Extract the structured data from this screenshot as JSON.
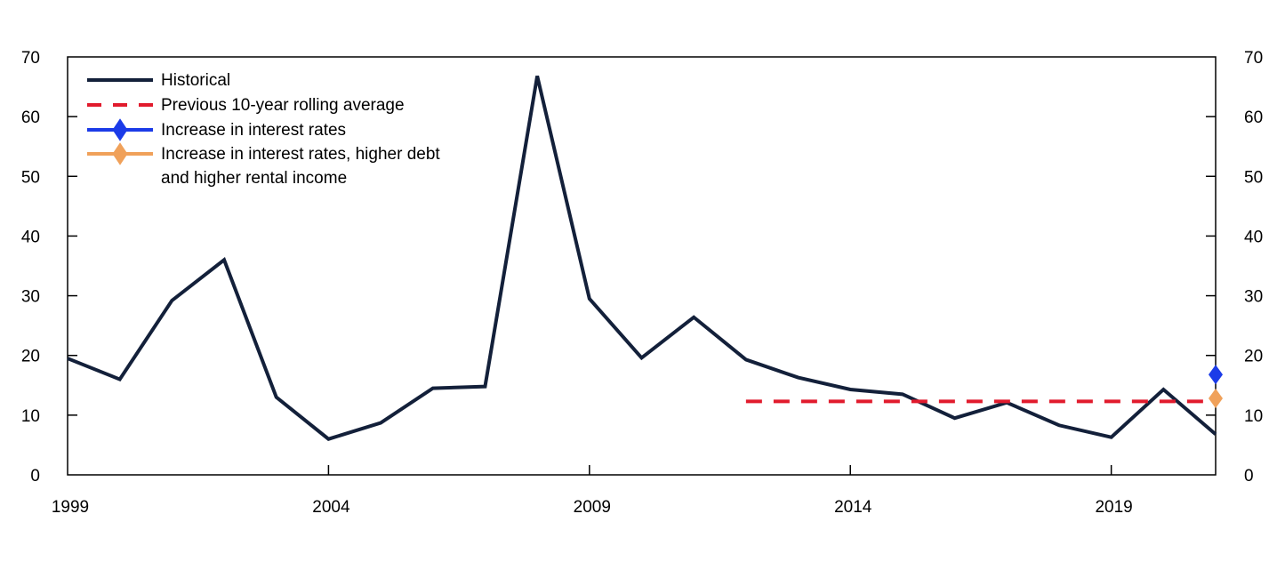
{
  "chart_data": {
    "type": "line",
    "title": "",
    "xlabel": "",
    "ylabel": "",
    "x": [
      1999,
      2000,
      2001,
      2002,
      2003,
      2004,
      2005,
      2006,
      2007,
      2008,
      2009,
      2010,
      2011,
      2012,
      2013,
      2014,
      2015,
      2016,
      2017,
      2018,
      2019,
      2020,
      2021
    ],
    "series": [
      {
        "name": "Historical",
        "kind": "line",
        "color": "#13203A",
        "line_width": 4,
        "values": [
          19.5,
          16,
          29.2,
          36,
          13,
          6,
          8.7,
          14.5,
          14.8,
          66.8,
          29.5,
          19.6,
          26.4,
          19.3,
          16.3,
          14.3,
          13.5,
          9.5,
          12.1,
          8.3,
          6.3,
          14.3,
          6.8
        ]
      },
      {
        "name": "Previous 10-year rolling average",
        "kind": "dashed-horizontal-line",
        "color": "#E11B2D",
        "line_width": 4,
        "x_start": 2012,
        "x_end": 2021,
        "value": 12.3
      },
      {
        "name": "Increase in interest rates",
        "kind": "marker",
        "marker": "diamond",
        "color": "#1B3BE8",
        "point": {
          "x": 2021,
          "y": 16.8
        }
      },
      {
        "name": "Increase in interest rates, higher debt and higher rental income",
        "kind": "marker",
        "marker": "diamond",
        "color": "#F0A15A",
        "point": {
          "x": 2021,
          "y": 12.8
        }
      }
    ],
    "xlim": [
      1999,
      2021
    ],
    "ylim": [
      0,
      70
    ],
    "xticks": [
      1999,
      2004,
      2009,
      2014,
      2019
    ],
    "yticks": [
      0,
      10,
      20,
      30,
      40,
      50,
      60,
      70
    ],
    "y_axis_sides": "both",
    "grid": false,
    "legend_position": "top-left",
    "frame_color": "#000000"
  }
}
